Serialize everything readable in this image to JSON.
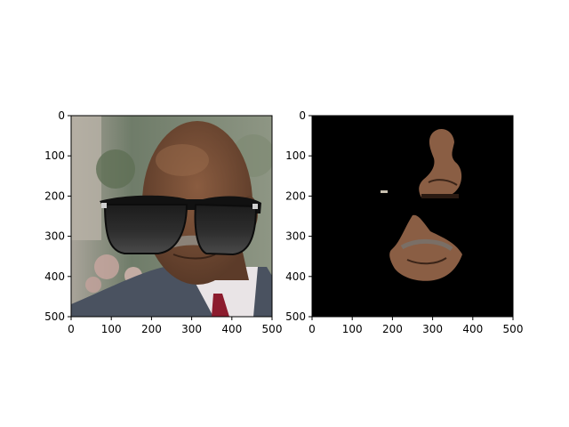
{
  "figure": {
    "background": "#ffffff"
  },
  "chart_data": [
    {
      "type": "image",
      "title": "",
      "xlabel": "",
      "ylabel": "",
      "xlim": [
        0,
        500
      ],
      "ylim": [
        500,
        0
      ],
      "y_axis_inverted": true,
      "xticks": [
        0,
        100,
        200,
        300,
        400,
        500
      ],
      "yticks": [
        0,
        100,
        200,
        300,
        400,
        500
      ],
      "grid": false,
      "content": "photo of a man wearing black sunglasses",
      "colors": {
        "sunglasses": "#141414",
        "suit": "#4a5260",
        "skin": "#6e4a34",
        "background_foliage": "#7c8874"
      }
    },
    {
      "type": "image",
      "title": "",
      "xlabel": "",
      "ylabel": "",
      "xlim": [
        0,
        500
      ],
      "ylim": [
        500,
        0
      ],
      "y_axis_inverted": true,
      "xticks": [
        0,
        100,
        200,
        300,
        400,
        500
      ],
      "yticks": [
        0,
        100,
        200,
        300,
        400,
        500
      ],
      "grid": false,
      "content": "masked face region on black background",
      "colors": {
        "mask_background": "#000000",
        "skin": "#8a5e44"
      }
    }
  ]
}
